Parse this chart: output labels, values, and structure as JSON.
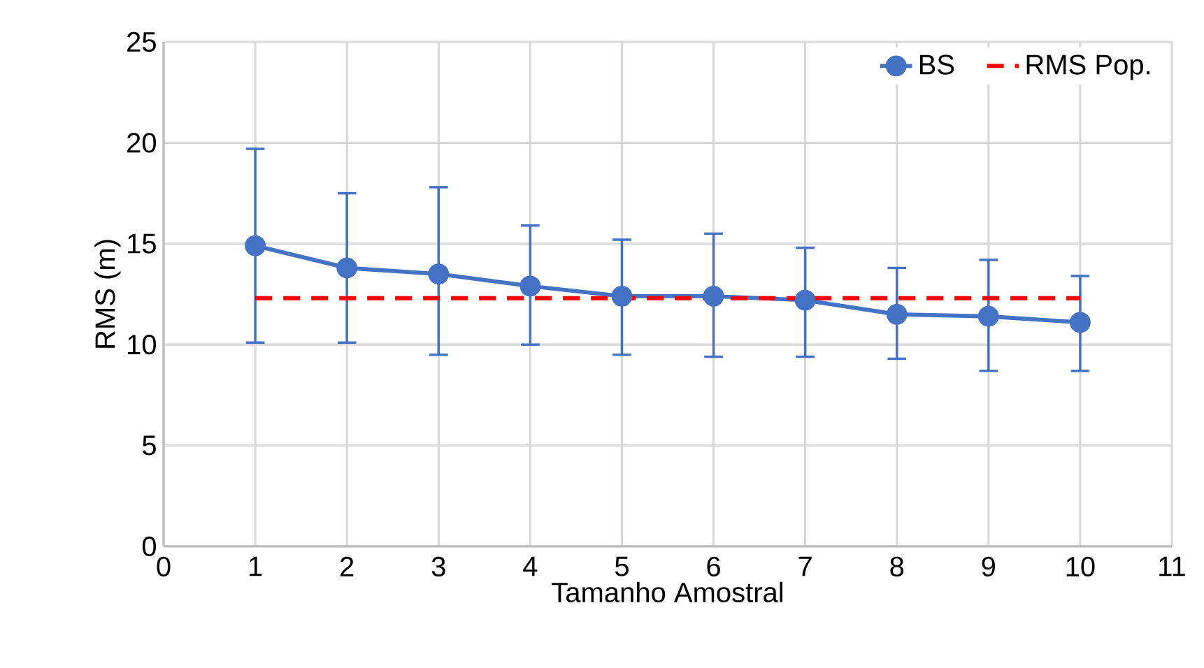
{
  "chart_data": {
    "type": "line",
    "xlabel": "Tamanho Amostral",
    "ylabel": "RMS (m)",
    "x": [
      1,
      2,
      3,
      4,
      5,
      6,
      7,
      8,
      9,
      10
    ],
    "series": [
      {
        "name": "BS",
        "color": "#4472c4",
        "marker": "circle",
        "line_style": "solid",
        "values": [
          14.9,
          13.8,
          13.5,
          12.9,
          12.4,
          12.4,
          12.2,
          11.5,
          11.4,
          11.1
        ],
        "errors": [
          [
            10.1,
            19.7
          ],
          [
            10.1,
            17.5
          ],
          [
            9.5,
            17.8
          ],
          [
            10.0,
            15.9
          ],
          [
            9.5,
            15.2
          ],
          [
            9.4,
            15.5
          ],
          [
            9.4,
            14.8
          ],
          [
            9.3,
            13.8
          ],
          [
            8.7,
            14.2
          ],
          [
            8.7,
            13.4
          ]
        ]
      },
      {
        "name": "RMS Pop.",
        "color": "#ff0000",
        "marker": "none",
        "line_style": "dashed",
        "values": [
          12.3,
          12.3,
          12.3,
          12.3,
          12.3,
          12.3,
          12.3,
          12.3,
          12.3,
          12.3
        ]
      }
    ],
    "xlim": [
      0,
      11
    ],
    "xticks": [
      0,
      1,
      2,
      3,
      4,
      5,
      6,
      7,
      8,
      9,
      10,
      11
    ],
    "ylim": [
      0,
      25
    ],
    "yticks": [
      0,
      5,
      10,
      15,
      20,
      25
    ],
    "grid": true,
    "legend": "top right"
  }
}
